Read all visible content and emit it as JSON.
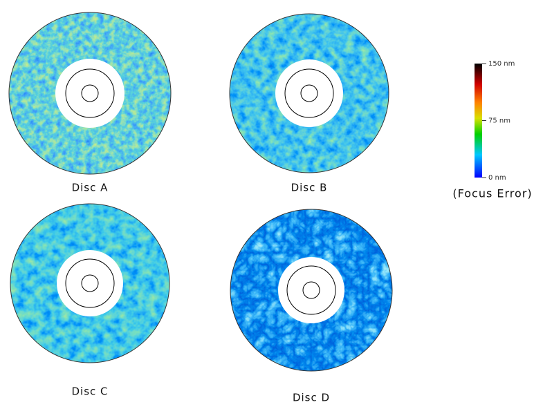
{
  "discs": [
    {
      "label": "Disc A"
    },
    {
      "label": "Disc B"
    },
    {
      "label": "Disc C"
    },
    {
      "label": "Disc D"
    }
  ],
  "colorbar": {
    "range": [
      0,
      150
    ],
    "ticks": [
      {
        "value": 150,
        "label": "150 nm"
      },
      {
        "value": 75,
        "label": "75 nm"
      },
      {
        "value": 0,
        "label": "0 nm"
      }
    ],
    "title": "(Focus Error)"
  }
}
